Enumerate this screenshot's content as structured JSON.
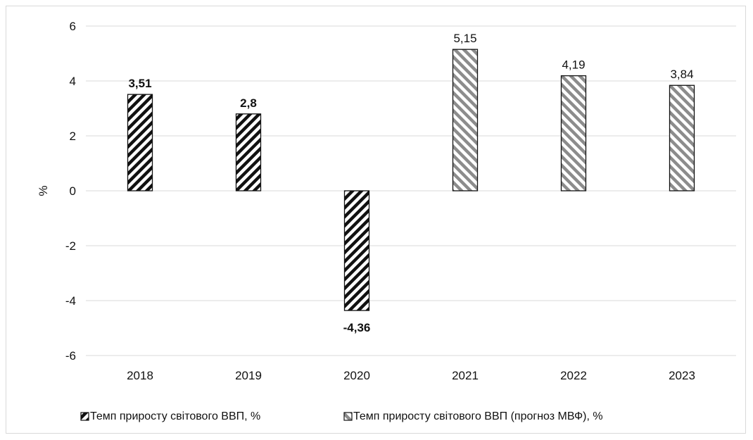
{
  "chart_data": {
    "type": "bar",
    "categories": [
      "2018",
      "2019",
      "2020",
      "2021",
      "2022",
      "2023"
    ],
    "series": [
      {
        "name": "Темп приросту світового ВВП, %",
        "values": [
          3.51,
          2.8,
          -4.36,
          null,
          null,
          null
        ],
        "labels": [
          "3,51",
          "2,8",
          "-4,36",
          "",
          "",
          ""
        ],
        "pattern": "dark-hatch",
        "label_bold": true
      },
      {
        "name": "Темп приросту світового ВВП (прогноз МВФ), %",
        "values": [
          null,
          null,
          null,
          5.15,
          4.19,
          3.84
        ],
        "labels": [
          "",
          "",
          "",
          "5,15",
          "4,19",
          "3,84"
        ],
        "pattern": "gray-hatch",
        "label_bold": false
      }
    ],
    "ylabel": "%",
    "ylim": [
      -6,
      6
    ],
    "yticks": [
      6,
      4,
      2,
      0,
      -2,
      -4,
      -6
    ],
    "ytick_labels": [
      "6",
      "4",
      "2",
      "0",
      "-2",
      "-4",
      "-6"
    ],
    "grid": true,
    "legend_position": "bottom"
  },
  "colors": {
    "dark_hatch": "#111111",
    "gray_hatch": "#8c8c8c",
    "grid": "#d9d9d9",
    "text": "#111111"
  }
}
